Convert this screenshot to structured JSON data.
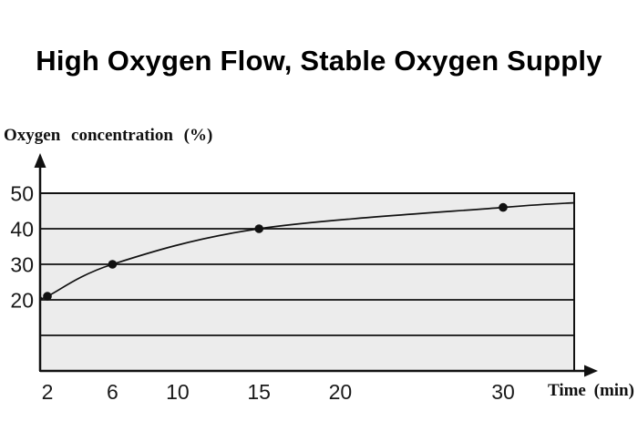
{
  "header": {
    "title": "High Oxygen Flow, Stable Oxygen Supply"
  },
  "chart_data": {
    "type": "line",
    "title": "High Oxygen Flow, Stable Oxygen Supply",
    "xlabel": "Time (min)",
    "ylabel": "Oxygen concentration (%)",
    "x_ticks": [
      2,
      6,
      10,
      15,
      20,
      30
    ],
    "y_ticks": [
      20,
      30,
      40,
      50
    ],
    "y_gridline_values": [
      10,
      20,
      30,
      40,
      50
    ],
    "xlim": [
      0,
      34.5
    ],
    "ylim": [
      0,
      50
    ],
    "grid": "horizontal-only",
    "legend": "none",
    "plot_background": "#ececec",
    "axis_color": "#111111",
    "line_color": "#111111",
    "marker_color": "#111111",
    "series": [
      {
        "name": "oxygen-concentration",
        "points": [
          {
            "x": 2,
            "y": 21
          },
          {
            "x": 6,
            "y": 30
          },
          {
            "x": 15,
            "y": 40
          },
          {
            "x": 30,
            "y": 46
          }
        ],
        "curve_extends_from": {
          "x": 1.6,
          "y": 20.7
        },
        "curve_extends_to": {
          "x": 34.4,
          "y": 47.3
        }
      }
    ]
  }
}
